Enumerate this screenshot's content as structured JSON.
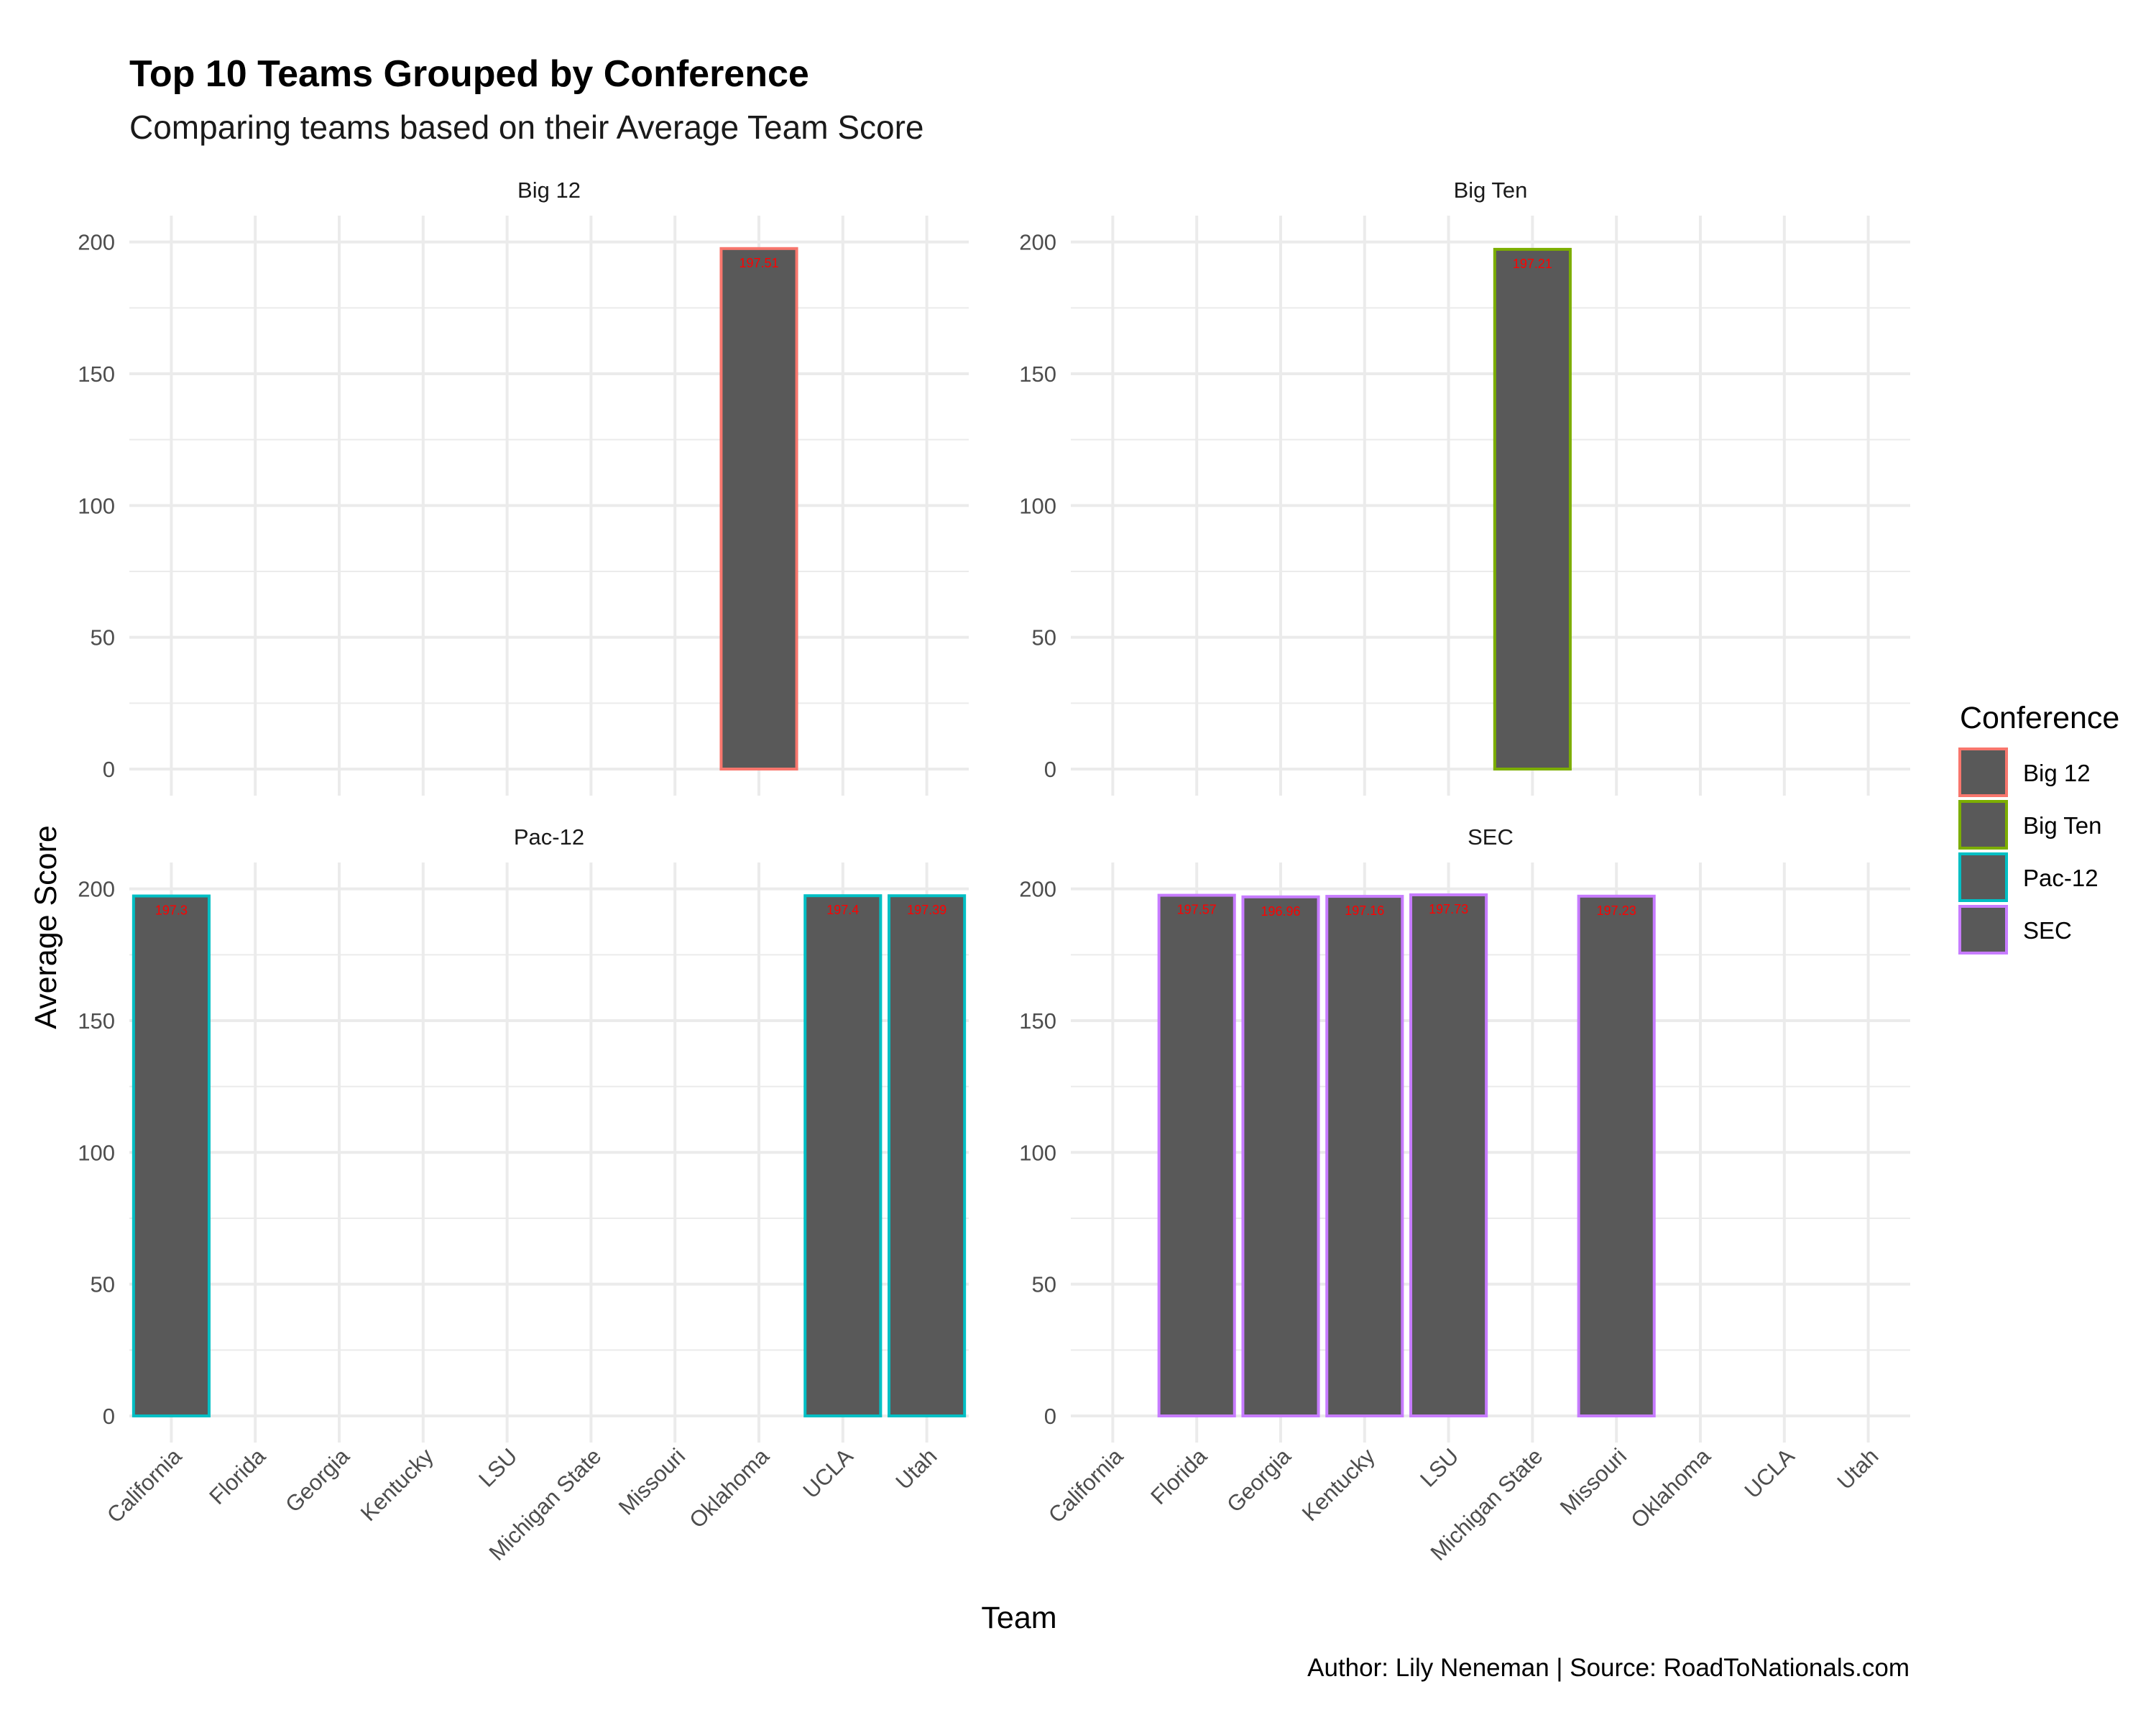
{
  "title": "Top 10 Teams Grouped by Conference",
  "subtitle": "Comparing teams based on their Average Team Score",
  "caption": "Author: Lily Neneman | Source: RoadToNationals.com",
  "chart_data": {
    "type": "bar",
    "xlabel": "Team",
    "ylabel": "Average Score",
    "ylim": [
      0,
      210
    ],
    "yticks": [
      0,
      50,
      100,
      150,
      200
    ],
    "grid": true,
    "categories": [
      "California",
      "Florida",
      "Georgia",
      "Kentucky",
      "LSU",
      "Michigan State",
      "Missouri",
      "Oklahoma",
      "UCLA",
      "Utah"
    ],
    "legend": {
      "title": "Conference",
      "placement": "right",
      "items": [
        {
          "label": "Big 12",
          "color": "#f8766d"
        },
        {
          "label": "Big Ten",
          "color": "#7cae00"
        },
        {
          "label": "Pac-12",
          "color": "#00bfc4"
        },
        {
          "label": "SEC",
          "color": "#c77cff"
        }
      ]
    },
    "bar_fill": "#595959",
    "label_color": "#ff0000",
    "facets": [
      {
        "name": "Big 12",
        "color": "#f8766d",
        "bars": [
          {
            "team": "Oklahoma",
            "value": 197.51,
            "label": "197.51"
          }
        ]
      },
      {
        "name": "Big Ten",
        "color": "#7cae00",
        "bars": [
          {
            "team": "Michigan State",
            "value": 197.21,
            "label": "197.21"
          }
        ]
      },
      {
        "name": "Pac-12",
        "color": "#00bfc4",
        "bars": [
          {
            "team": "California",
            "value": 197.3,
            "label": "197.3"
          },
          {
            "team": "UCLA",
            "value": 197.4,
            "label": "197.4"
          },
          {
            "team": "Utah",
            "value": 197.39,
            "label": "197.39"
          }
        ]
      },
      {
        "name": "SEC",
        "color": "#c77cff",
        "bars": [
          {
            "team": "Florida",
            "value": 197.57,
            "label": "197.57"
          },
          {
            "team": "Georgia",
            "value": 196.96,
            "label": "196.96"
          },
          {
            "team": "Kentucky",
            "value": 197.16,
            "label": "197.16"
          },
          {
            "team": "LSU",
            "value": 197.73,
            "label": "197.73"
          },
          {
            "team": "Missouri",
            "value": 197.23,
            "label": "197.23"
          }
        ]
      }
    ]
  }
}
